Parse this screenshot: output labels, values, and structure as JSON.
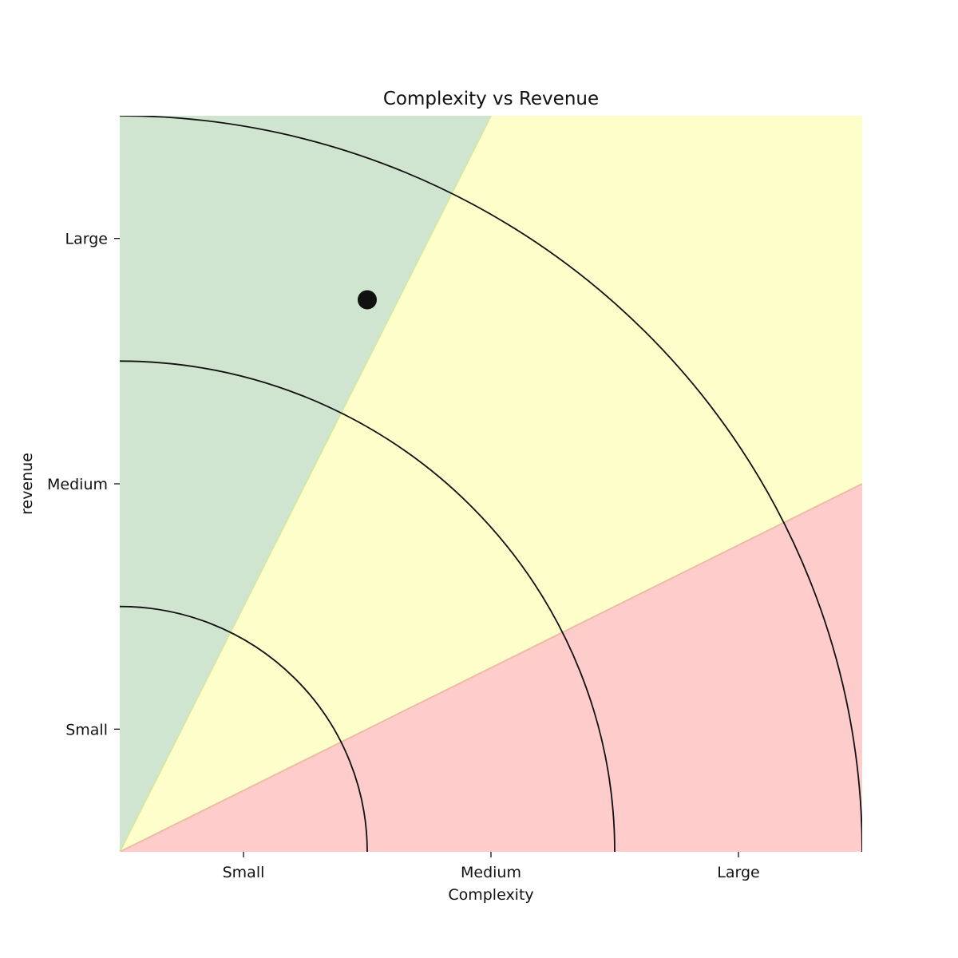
{
  "chart_data": {
    "type": "scatter",
    "title": "Complexity vs Revenue",
    "xlabel": "Complexity",
    "ylabel": "revenue",
    "xlim": [
      0,
      3
    ],
    "ylim": [
      0,
      3
    ],
    "x_ticks": [
      {
        "value": 0.5,
        "label": "Small"
      },
      {
        "value": 1.5,
        "label": "Medium"
      },
      {
        "value": 2.5,
        "label": "Large"
      }
    ],
    "y_ticks": [
      {
        "value": 0.5,
        "label": "Small"
      },
      {
        "value": 1.5,
        "label": "Medium"
      },
      {
        "value": 2.5,
        "label": "Large"
      }
    ],
    "regions": [
      {
        "id": "green",
        "color": "#cfe5cf",
        "edge": "#d8e6a0",
        "between_slopes": [
          2,
          null
        ]
      },
      {
        "id": "yellow",
        "color": "#fefecb",
        "edge": null,
        "between_slopes": [
          0.5,
          2
        ]
      },
      {
        "id": "red",
        "color": "#fecccb",
        "edge": "#f4b9a6",
        "between_slopes": [
          0,
          0.5
        ]
      }
    ],
    "arc_radii": [
      1,
      2,
      3
    ],
    "points": [
      {
        "x": 1.0,
        "y": 2.25
      }
    ],
    "point_color": "#111111",
    "grid": false,
    "legend": "none"
  }
}
